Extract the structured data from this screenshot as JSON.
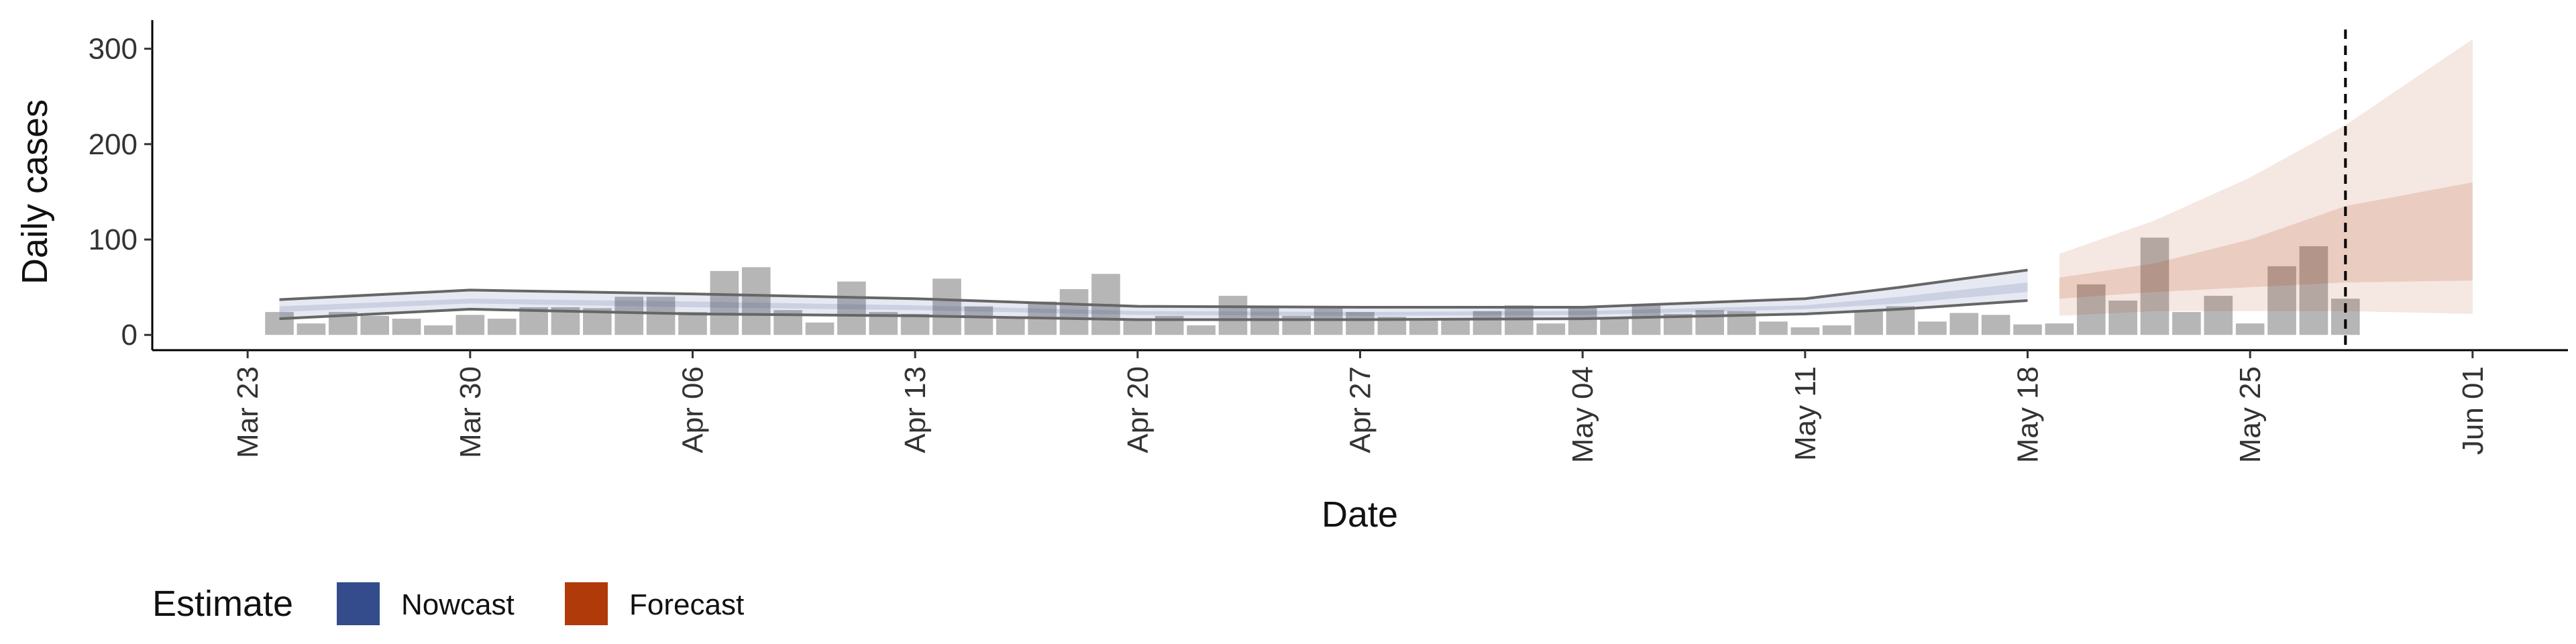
{
  "chart_data": {
    "type": "bar",
    "y_label": "Daily cases",
    "x_label": "Date",
    "legend_title": "Estimate",
    "xlim": [
      "03-20",
      "06-04"
    ],
    "ylim": [
      -16,
      330
    ],
    "yticks": [
      0,
      100,
      200,
      300
    ],
    "xticks": [
      {
        "value": "03-23",
        "label": "Mar 23"
      },
      {
        "value": "03-30",
        "label": "Mar 30"
      },
      {
        "value": "04-06",
        "label": "Apr 06"
      },
      {
        "value": "04-13",
        "label": "Apr 13"
      },
      {
        "value": "04-20",
        "label": "Apr 20"
      },
      {
        "value": "04-27",
        "label": "Apr 27"
      },
      {
        "value": "05-04",
        "label": "May 04"
      },
      {
        "value": "05-11",
        "label": "May 11"
      },
      {
        "value": "05-18",
        "label": "May 18"
      },
      {
        "value": "05-25",
        "label": "May 25"
      },
      {
        "value": "06-01",
        "label": "Jun 01"
      }
    ],
    "vline": "05-28",
    "bars": {
      "color": "#a9a9a9",
      "x": [
        "03-24",
        "03-25",
        "03-26",
        "03-27",
        "03-28",
        "03-29",
        "03-30",
        "03-31",
        "04-01",
        "04-02",
        "04-03",
        "04-04",
        "04-05",
        "04-06",
        "04-07",
        "04-08",
        "04-09",
        "04-10",
        "04-11",
        "04-12",
        "04-13",
        "04-14",
        "04-15",
        "04-16",
        "04-17",
        "04-18",
        "04-19",
        "04-20",
        "04-21",
        "04-22",
        "04-23",
        "04-24",
        "04-25",
        "04-26",
        "04-27",
        "04-28",
        "04-29",
        "04-30",
        "05-01",
        "05-02",
        "05-03",
        "05-04",
        "05-05",
        "05-06",
        "05-07",
        "05-08",
        "05-09",
        "05-10",
        "05-11",
        "05-12",
        "05-13",
        "05-14",
        "05-15",
        "05-16",
        "05-17",
        "05-18",
        "05-19",
        "05-20",
        "05-21",
        "05-22",
        "05-23",
        "05-24",
        "05-25",
        "05-26",
        "05-27",
        "05-28"
      ],
      "values": [
        24,
        12,
        24,
        20,
        17,
        10,
        21,
        17,
        29,
        29,
        28,
        40,
        40,
        24,
        67,
        71,
        26,
        13,
        56,
        24,
        22,
        59,
        30,
        17,
        35,
        48,
        64,
        17,
        20,
        10,
        41,
        30,
        20,
        30,
        24,
        19,
        15,
        17,
        25,
        31,
        12,
        30,
        18,
        31,
        22,
        26,
        25,
        14,
        8,
        10,
        26,
        30,
        14,
        23,
        21,
        11,
        12,
        53,
        36,
        102,
        24,
        41,
        12,
        72,
        93,
        38
      ]
    },
    "series": [
      {
        "name": "Nowcast",
        "color": "#344c8c",
        "edge_lines": true,
        "x": [
          "03-24",
          "03-30",
          "04-06",
          "04-13",
          "04-20",
          "04-27",
          "05-04",
          "05-11",
          "05-14",
          "05-18"
        ],
        "lower_90": [
          17,
          27,
          22,
          20,
          16,
          16,
          17,
          22,
          27,
          36
        ],
        "upper_90": [
          37,
          47,
          43,
          38,
          30,
          29,
          29,
          38,
          50,
          68
        ],
        "lower_50": [
          24,
          33,
          29,
          26,
          21,
          20,
          21,
          27,
          33,
          45
        ],
        "upper_50": [
          30,
          38,
          35,
          31,
          25,
          24,
          25,
          31,
          40,
          55
        ]
      },
      {
        "name": "Forecast",
        "color": "#b03a0a",
        "edge_lines": false,
        "x": [
          "05-19",
          "05-22",
          "05-25",
          "05-28",
          "06-01"
        ],
        "lower_90": [
          20,
          25,
          25,
          25,
          22
        ],
        "upper_90": [
          85,
          120,
          165,
          220,
          310
        ],
        "lower_50": [
          38,
          45,
          50,
          55,
          57
        ],
        "upper_50": [
          60,
          75,
          100,
          135,
          160
        ]
      }
    ]
  }
}
